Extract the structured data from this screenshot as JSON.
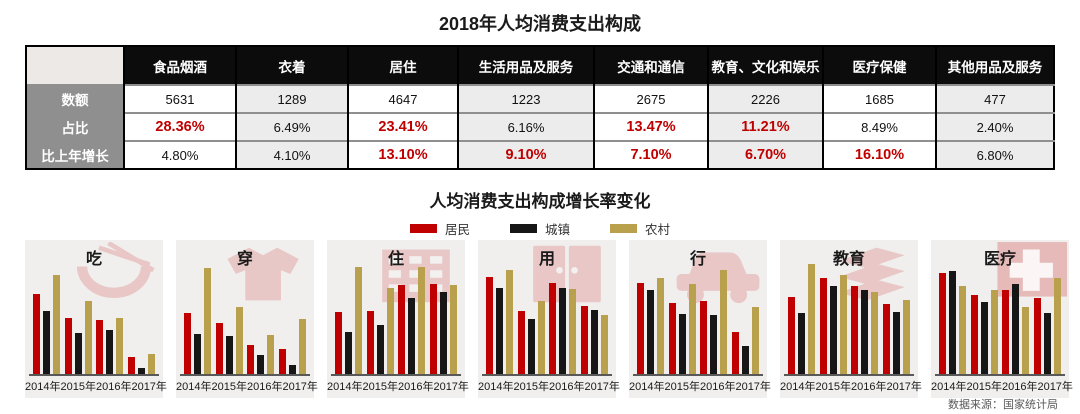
{
  "page": {
    "title": "2018年人均消费支出构成",
    "source": "数据来源：国家统计局"
  },
  "growth_section": {
    "title": "人均消费支出构成增长率变化",
    "legend": [
      {
        "label": "居民",
        "color": "#c00000"
      },
      {
        "label": "城镇",
        "color": "#161616"
      },
      {
        "label": "农村",
        "color": "#b9a04c"
      }
    ]
  },
  "colors": {
    "accent_red": "#c00000",
    "table_header_bg": "#0c0c0c",
    "row_label_bg": "#8f8f8f",
    "corner_cell_bg": "#ede9e6",
    "alt_column_bg": "#ececec",
    "panel_bg": "#f0efee"
  },
  "chart_data": [
    {
      "type": "table",
      "title": "2018年人均消费支出构成",
      "columns": [
        "食品烟酒",
        "衣着",
        "居住",
        "生活用品及服务",
        "交通和通信",
        "教育、文化和娱乐",
        "医疗保健",
        "其他用品及服务"
      ],
      "rows": [
        {
          "label": "数额",
          "values": [
            "5631",
            "1289",
            "4647",
            "1223",
            "2675",
            "2226",
            "1685",
            "477"
          ],
          "red": [
            false,
            false,
            false,
            false,
            false,
            false,
            false,
            false
          ]
        },
        {
          "label": "占比",
          "values": [
            "28.36%",
            "6.49%",
            "23.41%",
            "6.16%",
            "13.47%",
            "11.21%",
            "8.49%",
            "2.40%"
          ],
          "red": [
            true,
            false,
            true,
            false,
            true,
            true,
            false,
            false
          ]
        },
        {
          "label": "比上年增长",
          "values": [
            "4.80%",
            "4.10%",
            "13.10%",
            "9.10%",
            "7.10%",
            "6.70%",
            "16.10%",
            "6.80%"
          ],
          "red": [
            false,
            false,
            true,
            true,
            true,
            true,
            true,
            false
          ]
        }
      ]
    },
    {
      "type": "bar",
      "title": "人均消费支出构成增长率变化",
      "x": [
        "2014年",
        "2015年",
        "2016年",
        "2017年"
      ],
      "legend_position": "top-center",
      "axis_note": "no y-axis shown; values are relative bar heights estimated from pixels (max scale 112)",
      "panels": [
        {
          "name": "吃",
          "icon": "rice-bowl-icon",
          "series": [
            {
              "name": "居民",
              "values": [
                80,
                56,
                54,
                17
              ]
            },
            {
              "name": "城镇",
              "values": [
                63,
                41,
                44,
                6
              ]
            },
            {
              "name": "农村",
              "values": [
                99,
                73,
                56,
                20
              ]
            }
          ]
        },
        {
          "name": "穿",
          "icon": "tshirt-icon",
          "series": [
            {
              "name": "居民",
              "values": [
                61,
                51,
                29,
                25
              ]
            },
            {
              "name": "城镇",
              "values": [
                40,
                38,
                19,
                9
              ]
            },
            {
              "name": "农村",
              "values": [
                106,
                67,
                39,
                55
              ]
            }
          ]
        },
        {
          "name": "住",
          "icon": "building-icon",
          "series": [
            {
              "name": "居民",
              "values": [
                62,
                63,
                89,
                90
              ]
            },
            {
              "name": "城镇",
              "values": [
                42,
                49,
                76,
                82
              ]
            },
            {
              "name": "农村",
              "values": [
                107,
                86,
                107,
                89
              ]
            }
          ]
        },
        {
          "name": "用",
          "icon": "wardrobe-icon",
          "series": [
            {
              "name": "居民",
              "values": [
                97,
                63,
                91,
                68
              ]
            },
            {
              "name": "城镇",
              "values": [
                86,
                55,
                86,
                64
              ]
            },
            {
              "name": "农村",
              "values": [
                104,
                73,
                85,
                59
              ]
            }
          ]
        },
        {
          "name": "行",
          "icon": "car-icon",
          "series": [
            {
              "name": "居民",
              "values": [
                91,
                71,
                73,
                42
              ]
            },
            {
              "name": "城镇",
              "values": [
                84,
                60,
                59,
                28
              ]
            },
            {
              "name": "农村",
              "values": [
                96,
                90,
                104,
                67
              ]
            }
          ]
        },
        {
          "name": "教育",
          "icon": "books-icon",
          "series": [
            {
              "name": "居民",
              "values": [
                77,
                96,
                88,
                70
              ]
            },
            {
              "name": "城镇",
              "values": [
                61,
                88,
                84,
                62
              ]
            },
            {
              "name": "农村",
              "values": [
                110,
                99,
                82,
                74
              ]
            }
          ]
        },
        {
          "name": "医疗",
          "icon": "medical-cross-icon",
          "series": [
            {
              "name": "居民",
              "values": [
                101,
                79,
                84,
                76
              ]
            },
            {
              "name": "城镇",
              "values": [
                103,
                72,
                90,
                61
              ]
            },
            {
              "name": "农村",
              "values": [
                88,
                84,
                67,
                96
              ]
            }
          ]
        }
      ]
    }
  ]
}
